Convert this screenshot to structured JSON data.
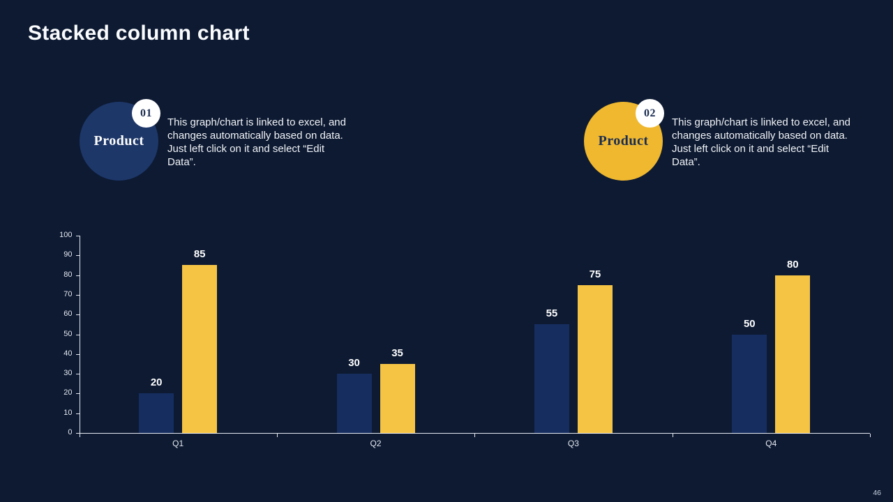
{
  "slide": {
    "title": "Stacked column chart",
    "page_number": "46",
    "background": "#0D1A32"
  },
  "colors": {
    "badge_bg": "#FFFFFF",
    "badge_text": "#1A2C52",
    "axis": "#E6EAF2",
    "body_text": "#F2F4F7"
  },
  "callouts": [
    {
      "number": "01",
      "label": "Product",
      "circle_color": "#1D3769",
      "label_color": "#FFFFFF",
      "description": "This graph/chart is linked to excel, and changes automatically based on data. Just left click on it and select “Edit Data”."
    },
    {
      "number": "02",
      "label": "Product",
      "circle_color": "#EFB82F",
      "label_color": "#1A2C52",
      "description": "This graph/chart is linked to excel, and changes automatically based on data. Just left click on it and select “Edit Data”."
    }
  ],
  "chart_data": {
    "type": "bar",
    "title": "",
    "categories": [
      "Q1",
      "Q2",
      "Q3",
      "Q4"
    ],
    "series": [
      {
        "name": "Product 01",
        "color": "#162D5F",
        "values": [
          20,
          30,
          55,
          50
        ]
      },
      {
        "name": "Product 02",
        "color": "#F6C445",
        "values": [
          85,
          35,
          75,
          80
        ]
      }
    ],
    "ylim": [
      0,
      100
    ],
    "ytick_step": 10,
    "grid": false,
    "legend_position": "none",
    "data_labels": true
  }
}
